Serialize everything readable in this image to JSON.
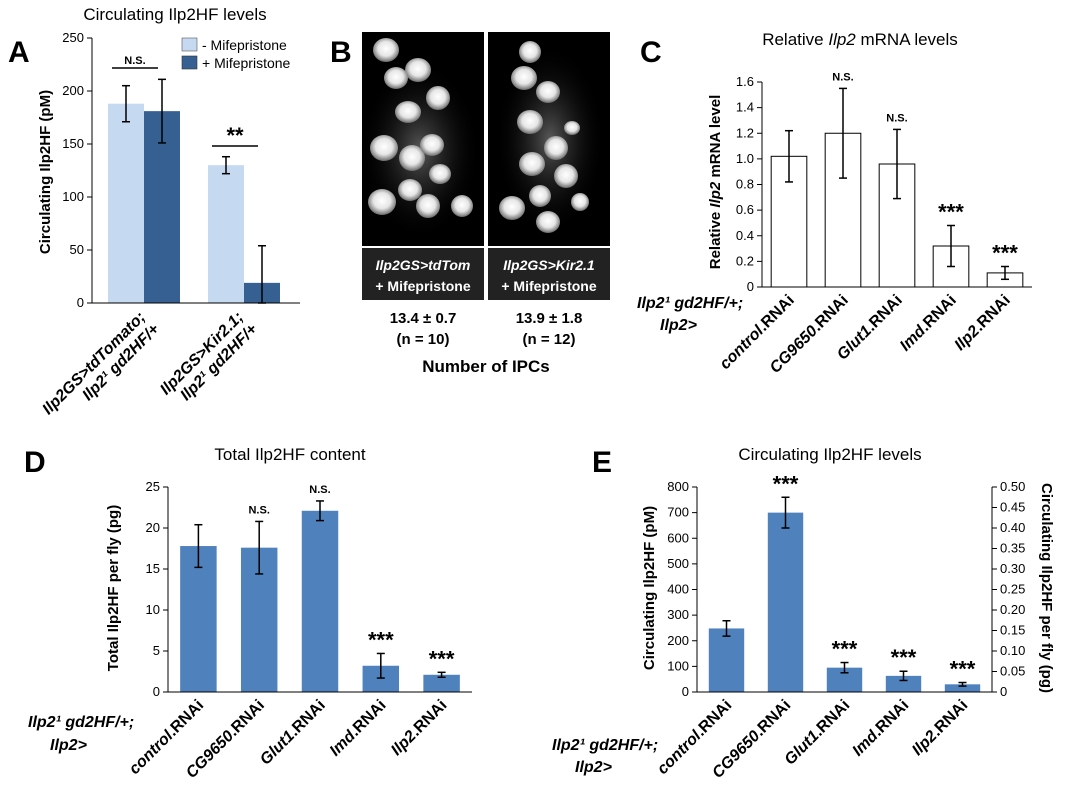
{
  "colors": {
    "light_bar": "#c5d9f1",
    "dark_bar": "#366092",
    "blue_bar": "#4f81bd",
    "white_bar": "#ffffff",
    "axis": "#000000"
  },
  "panels": {
    "A": {
      "letter": "A",
      "title": "Circulating Ilp2HF levels",
      "ylabel": "Circulating Ilp2HF (pM)",
      "legend": [
        "- Mifepristone",
        "+ Mifepristone"
      ],
      "genotypes": [
        [
          "Ilp2GS>tdTomato;",
          "Ilp2¹ gd2HF/+"
        ],
        [
          "Ilp2GS>Kir2.1;",
          "Ilp2¹ gd2HF/+"
        ]
      ],
      "significance": [
        "N.S.",
        "**"
      ]
    },
    "B": {
      "letter": "B",
      "image_labels": [
        [
          "Ilp2GS>tdTom",
          "+ Mifepristone"
        ],
        [
          "Ilp2GS>Kir2.1",
          "+ Mifepristone"
        ]
      ],
      "counts": [
        [
          "13.4 ±  0.7",
          "(n = 10)"
        ],
        [
          "13.9 ± 1.8",
          "(n = 12)"
        ]
      ],
      "xlabel": "Number of IPCs"
    },
    "C": {
      "letter": "C",
      "title": "Relative Ilp2 mRNA levels",
      "ylabel": "Relative Ilp2 mRNA level",
      "genotype": [
        "Ilp2¹ gd2HF/+;",
        "Ilp2>"
      ],
      "significance": [
        "",
        "N.S.",
        "N.S.",
        "***",
        "***"
      ]
    },
    "D": {
      "letter": "D",
      "title": "Total Ilp2HF content",
      "ylabel": "Total Ilp2HF per fly (pg)",
      "genotype": [
        "Ilp2¹ gd2HF/+;",
        "Ilp2>"
      ],
      "significance": [
        "",
        "N.S.",
        "N.S.",
        "***",
        "***"
      ]
    },
    "E": {
      "letter": "E",
      "title": "Circulating Ilp2HF levels",
      "ylabel": "Circulating Ilp2HF (pM)",
      "y2label": "Circulating Ilp2HF per fly (pg)",
      "genotype": [
        "Ilp2¹ gd2HF/+;",
        "Ilp2>"
      ],
      "significance": [
        "",
        "***",
        "***",
        "***",
        "***"
      ]
    }
  },
  "chart_data": [
    {
      "panel": "A",
      "type": "bar",
      "categories": [
        "Ilp2GS>tdTomato; Ilp2¹ gd2HF/+",
        "Ilp2GS>Kir2.1; Ilp2¹ gd2HF/+"
      ],
      "series": [
        {
          "name": "- Mifepristone",
          "values": [
            188,
            130
          ],
          "errors": [
            17,
            8
          ]
        },
        {
          "name": "+ Mifepristone",
          "values": [
            181,
            19
          ],
          "errors": [
            30,
            35
          ]
        }
      ],
      "ylim": [
        0,
        250
      ],
      "yticks": [
        0,
        50,
        100,
        150,
        200,
        250
      ]
    },
    {
      "panel": "C",
      "type": "bar",
      "categories": [
        "control.RNAi",
        "CG9650.RNAi",
        "Glut1.RNAi",
        "Imd.RNAi",
        "Ilp2.RNAi"
      ],
      "values": [
        1.02,
        1.2,
        0.96,
        0.32,
        0.11
      ],
      "errors": [
        0.2,
        0.35,
        0.27,
        0.16,
        0.05
      ],
      "ylim": [
        0,
        1.6
      ],
      "yticks": [
        "0",
        "0.2",
        "0.4",
        "0.6",
        "0.8",
        "1.0",
        "1.2",
        "1.4",
        "1.6"
      ]
    },
    {
      "panel": "D",
      "type": "bar",
      "categories": [
        "control.RNAi",
        "CG9650.RNAi",
        "Glut1.RNAi",
        "Imd.RNAi",
        "Ilp2.RNAi"
      ],
      "values": [
        17.8,
        17.6,
        22.1,
        3.2,
        2.1
      ],
      "errors": [
        2.6,
        3.2,
        1.2,
        1.5,
        0.3
      ],
      "ylim": [
        0,
        25
      ],
      "yticks": [
        "0",
        "5",
        "10",
        "15",
        "20",
        "25"
      ]
    },
    {
      "panel": "E",
      "type": "bar",
      "categories": [
        "control.RNAi",
        "CG9650.RNAi",
        "Glut1.RNAi",
        "Imd.RNAi",
        "Ilp2.RNAi"
      ],
      "values": [
        248,
        700,
        95,
        63,
        30
      ],
      "errors": [
        30,
        60,
        20,
        18,
        7
      ],
      "ylim": [
        0,
        800
      ],
      "yticks": [
        "0",
        "100",
        "200",
        "300",
        "400",
        "500",
        "600",
        "700",
        "800"
      ],
      "y2lim": [
        0,
        0.5
      ],
      "y2ticks": [
        "0",
        "0.05",
        "0.10",
        "0.15",
        "0.20",
        "0.25",
        "0.30",
        "0.35",
        "0.40",
        "0.45",
        "0.50"
      ]
    }
  ]
}
